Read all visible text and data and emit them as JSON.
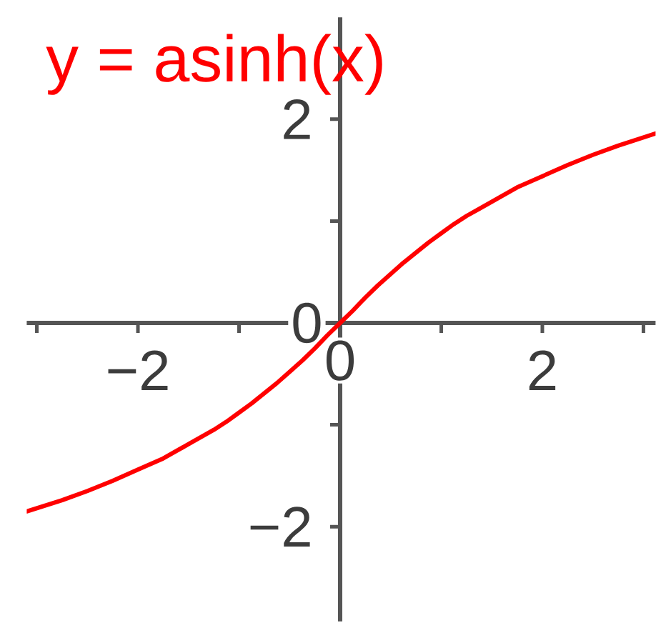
{
  "chart_data": {
    "type": "line",
    "x": [
      -3.1,
      -2.75,
      -2.5,
      -2.25,
      -2,
      -1.75,
      -1.5,
      -1.375,
      -1.25,
      -1.125,
      -1,
      -0.875,
      -0.75,
      -0.625,
      -0.5,
      -0.375,
      -0.25,
      -0.125,
      0,
      0.125,
      0.25,
      0.375,
      0.5,
      0.625,
      0.75,
      0.875,
      1,
      1.125,
      1.25,
      1.375,
      1.5,
      1.75,
      2,
      2.25,
      2.5,
      2.75,
      3.12
    ],
    "series": [
      {
        "name": "y = asinh(x)",
        "color": "#ff0000",
        "values": [
          -1.85,
          -1.74,
          -1.65,
          -1.55,
          -1.44,
          -1.33,
          -1.19,
          -1.12,
          -1.05,
          -0.97,
          -0.88,
          -0.79,
          -0.69,
          -0.59,
          -0.48,
          -0.37,
          -0.25,
          -0.12,
          0,
          0.12,
          0.25,
          0.37,
          0.48,
          0.59,
          0.69,
          0.79,
          0.88,
          0.97,
          1.05,
          1.12,
          1.19,
          1.33,
          1.44,
          1.55,
          1.65,
          1.74,
          1.86
        ]
      }
    ],
    "xlim": [
      -3.1,
      3.12
    ],
    "ylim": [
      -2.93,
      3.0
    ],
    "xticks": [
      {
        "value": -3,
        "label": null
      },
      {
        "value": -2,
        "label": "−2"
      },
      {
        "value": -1,
        "label": null
      },
      {
        "value": 0,
        "label": "0"
      },
      {
        "value": 1,
        "label": null
      },
      {
        "value": 2,
        "label": "2"
      },
      {
        "value": 3,
        "label": null
      }
    ],
    "yticks": [
      {
        "value": -2,
        "label": "−2"
      },
      {
        "value": -1,
        "label": null
      },
      {
        "value": 0,
        "label": "0"
      },
      {
        "value": 1,
        "label": null
      },
      {
        "value": 2,
        "label": "2"
      }
    ],
    "grid": false,
    "legend": false,
    "marker": "none",
    "line_style": "solid"
  }
}
